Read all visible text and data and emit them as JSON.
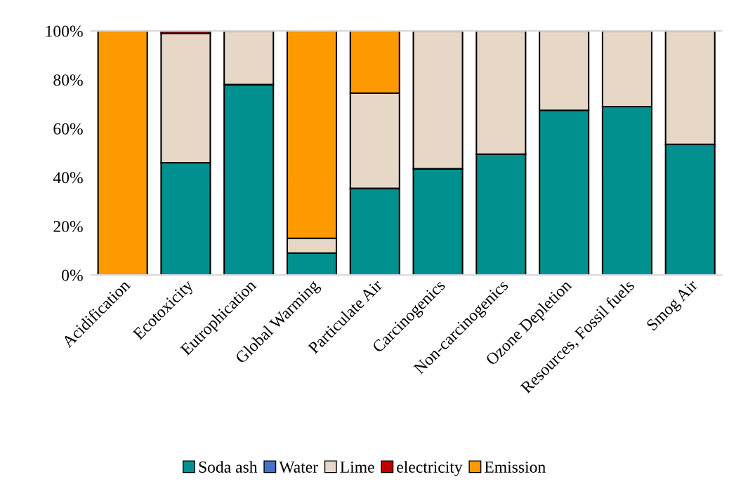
{
  "chart_data": {
    "type": "bar",
    "stacked": true,
    "categories": [
      "Acidification",
      "Ecotoxicity",
      "Eutrophication",
      "Global Warming",
      "Particulate Air",
      "Carcinogenics",
      "Non-carcinogenics",
      "Ozone Depletion",
      "Resources, Fossil fuels",
      "Smog Air"
    ],
    "series": [
      {
        "name": "Soda ash",
        "color": "#009090",
        "values": [
          0,
          46,
          78,
          9,
          35.5,
          43.5,
          49.5,
          67.5,
          69,
          53.5
        ]
      },
      {
        "name": "Water",
        "color": "#4472c4",
        "values": [
          0,
          0,
          0,
          0,
          0,
          0,
          0,
          0,
          0,
          0
        ]
      },
      {
        "name": "Lime",
        "color": "#e6d7c7",
        "values": [
          0,
          53,
          22,
          6,
          39,
          56.5,
          50.5,
          32.5,
          31,
          46.5
        ]
      },
      {
        "name": "electricity",
        "color": "#c00000",
        "values": [
          0,
          1,
          null,
          0,
          0,
          null,
          null,
          0,
          0,
          0
        ]
      },
      {
        "name": "Emission",
        "color": "#ff9900",
        "values": [
          100,
          0,
          0,
          85,
          25.5,
          0,
          0,
          0,
          0,
          0
        ]
      }
    ],
    "ylim": [
      0,
      100
    ],
    "yticks": [
      {
        "value": 0,
        "label": "0%"
      },
      {
        "value": 20,
        "label": "20%"
      },
      {
        "value": 40,
        "label": "40%"
      },
      {
        "value": 60,
        "label": "60%"
      },
      {
        "value": 80,
        "label": "80%"
      },
      {
        "value": 100,
        "label": "100%"
      }
    ],
    "grid": false,
    "legend": "bottom"
  }
}
